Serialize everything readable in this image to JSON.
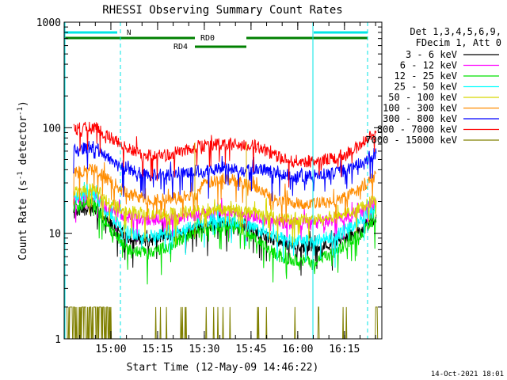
{
  "chart_data": {
    "type": "line",
    "title": "RHESSI Observing Summary Count Rates",
    "xlabel": "Start Time (12-May-09 14:46:22)",
    "ylabel_main": "Count Rate (s",
    "ylabel_sup1": "-1",
    "ylabel_mid": " detector",
    "ylabel_sup2": "-1",
    "ylabel_end": ")",
    "yscale": "log",
    "ylim": [
      1,
      1000
    ],
    "xlim": [
      14.75,
      16.45
    ],
    "y_ticks": [
      {
        "value": 1,
        "label": "1"
      },
      {
        "value": 10,
        "label": "10"
      },
      {
        "value": 100,
        "label": "100"
      },
      {
        "value": 1000,
        "label": "1000"
      }
    ],
    "x_ticks": [
      {
        "value": 15.0,
        "label": "15:00"
      },
      {
        "value": 15.25,
        "label": "15:15"
      },
      {
        "value": 15.5,
        "label": "15:30"
      },
      {
        "value": 15.75,
        "label": "15:45"
      },
      {
        "value": 16.0,
        "label": "16:00"
      },
      {
        "value": 16.25,
        "label": "16:15"
      }
    ],
    "legend_header": [
      "Det 1,3,4,5,6,9,",
      "FDecim 1, Att 0"
    ],
    "legend_position": "right",
    "series": [
      {
        "name": "3 - 6 keV",
        "color": "#000000",
        "points": [
          [
            14.8,
            15
          ],
          [
            14.9,
            18
          ],
          [
            15.0,
            12
          ],
          [
            15.1,
            9
          ],
          [
            15.2,
            8.5
          ],
          [
            15.3,
            9.5
          ],
          [
            15.45,
            11
          ],
          [
            15.6,
            12.5
          ],
          [
            15.7,
            12
          ],
          [
            15.8,
            10
          ],
          [
            15.9,
            8
          ],
          [
            16.0,
            7.5
          ],
          [
            16.1,
            7.5
          ],
          [
            16.2,
            8
          ],
          [
            16.3,
            10
          ],
          [
            16.42,
            14
          ]
        ]
      },
      {
        "name": "6 - 12 keV",
        "color": "#ff00ff",
        "points": [
          [
            14.8,
            20
          ],
          [
            14.9,
            23
          ],
          [
            15.0,
            16
          ],
          [
            15.1,
            14
          ],
          [
            15.2,
            13.5
          ],
          [
            15.3,
            13.5
          ],
          [
            15.45,
            15
          ],
          [
            15.6,
            16
          ],
          [
            15.7,
            15.5
          ],
          [
            15.8,
            14
          ],
          [
            15.9,
            12.5
          ],
          [
            16.0,
            12.5
          ],
          [
            16.1,
            12.5
          ],
          [
            16.2,
            13.5
          ],
          [
            16.3,
            15
          ],
          [
            16.42,
            19
          ]
        ]
      },
      {
        "name": "12 - 25 keV",
        "color": "#00e000",
        "points": [
          [
            14.8,
            18
          ],
          [
            14.9,
            20
          ],
          [
            15.0,
            11
          ],
          [
            15.1,
            7
          ],
          [
            15.2,
            6.5
          ],
          [
            15.3,
            7.5
          ],
          [
            15.45,
            10
          ],
          [
            15.6,
            12
          ],
          [
            15.7,
            11
          ],
          [
            15.8,
            8
          ],
          [
            15.9,
            6
          ],
          [
            16.0,
            5.5
          ],
          [
            16.1,
            5.5
          ],
          [
            16.2,
            6.5
          ],
          [
            16.3,
            9
          ],
          [
            16.42,
            13
          ]
        ]
      },
      {
        "name": "25 - 50 keV",
        "color": "#00ffff",
        "points": [
          [
            14.8,
            21
          ],
          [
            14.9,
            24
          ],
          [
            15.0,
            14
          ],
          [
            15.1,
            10
          ],
          [
            15.2,
            9.5
          ],
          [
            15.3,
            10
          ],
          [
            15.45,
            12
          ],
          [
            15.6,
            13
          ],
          [
            15.7,
            12.5
          ],
          [
            15.8,
            10.5
          ],
          [
            15.9,
            9
          ],
          [
            16.0,
            8.5
          ],
          [
            16.1,
            8.5
          ],
          [
            16.2,
            9.5
          ],
          [
            16.3,
            12
          ],
          [
            16.42,
            17
          ]
        ]
      },
      {
        "name": "50 - 100 keV",
        "color": "#d8d800",
        "points": [
          [
            14.8,
            24
          ],
          [
            14.9,
            26
          ],
          [
            15.0,
            19
          ],
          [
            15.1,
            16
          ],
          [
            15.2,
            15
          ],
          [
            15.3,
            15
          ],
          [
            15.45,
            16
          ],
          [
            15.6,
            17
          ],
          [
            15.7,
            16.5
          ],
          [
            15.8,
            15
          ],
          [
            15.9,
            13.5
          ],
          [
            16.0,
            13.5
          ],
          [
            16.1,
            13.5
          ],
          [
            16.2,
            14.5
          ],
          [
            16.3,
            16.5
          ],
          [
            16.42,
            21
          ]
        ]
      },
      {
        "name": "100 - 300 keV",
        "color": "#ff8c00",
        "points": [
          [
            14.8,
            37
          ],
          [
            14.9,
            41
          ],
          [
            15.0,
            31
          ],
          [
            15.1,
            23
          ],
          [
            15.2,
            21
          ],
          [
            15.3,
            21
          ],
          [
            15.45,
            23
          ],
          [
            15.5,
            29
          ],
          [
            15.6,
            33
          ],
          [
            15.7,
            31
          ],
          [
            15.8,
            26
          ],
          [
            15.9,
            21
          ],
          [
            16.0,
            19.5
          ],
          [
            16.1,
            19
          ],
          [
            16.2,
            20
          ],
          [
            16.3,
            24
          ],
          [
            16.42,
            35
          ]
        ]
      },
      {
        "name": "300 - 800 keV",
        "color": "#0000ff",
        "points": [
          [
            14.8,
            60
          ],
          [
            14.9,
            67
          ],
          [
            15.0,
            50
          ],
          [
            15.1,
            40
          ],
          [
            15.2,
            36
          ],
          [
            15.3,
            36
          ],
          [
            15.45,
            39
          ],
          [
            15.5,
            38
          ],
          [
            15.6,
            42
          ],
          [
            15.7,
            40
          ],
          [
            15.8,
            41
          ],
          [
            15.9,
            36
          ],
          [
            16.0,
            35
          ],
          [
            16.1,
            35
          ],
          [
            16.2,
            37
          ],
          [
            16.3,
            42
          ],
          [
            16.42,
            58
          ]
        ]
      },
      {
        "name": "800 - 7000 keV",
        "color": "#ff0000",
        "points": [
          [
            14.8,
            95
          ],
          [
            14.9,
            105
          ],
          [
            15.0,
            80
          ],
          [
            15.1,
            62
          ],
          [
            15.2,
            55
          ],
          [
            15.3,
            55
          ],
          [
            15.45,
            65
          ],
          [
            15.48,
            70
          ],
          [
            15.75,
            68
          ],
          [
            15.8,
            65
          ],
          [
            15.9,
            52
          ],
          [
            16.0,
            48
          ],
          [
            16.1,
            48
          ],
          [
            16.2,
            52
          ],
          [
            16.3,
            62
          ],
          [
            16.42,
            92
          ]
        ]
      },
      {
        "name": "7000 - 15000 keV",
        "color": "#808000",
        "points": [
          [
            14.76,
            2
          ],
          [
            14.9,
            2
          ],
          [
            15.0,
            2
          ],
          [
            15.02,
            1
          ],
          [
            16.4,
            1
          ],
          [
            16.43,
            2
          ]
        ]
      }
    ],
    "annotations": {
      "attenuator_label": "N",
      "rd0_label": "RD0",
      "rd4_label": "RD4"
    },
    "color_night": "#00e5e5",
    "color_flags": "#008000",
    "timestamp": "14-Oct-2021 18:01"
  }
}
